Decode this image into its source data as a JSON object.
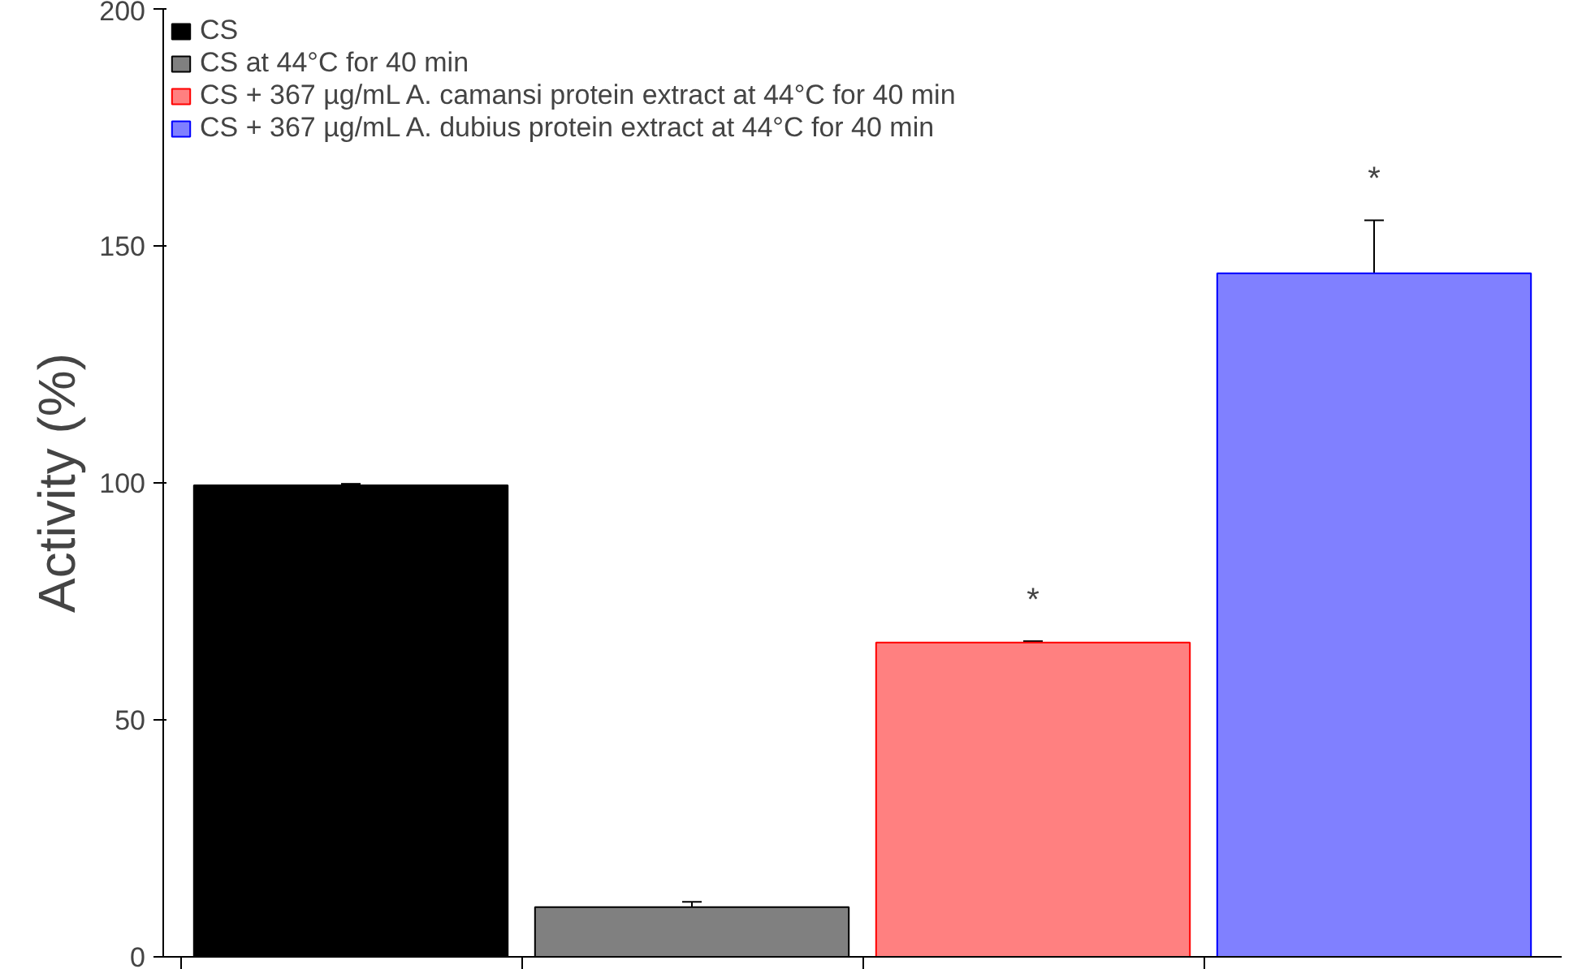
{
  "chart_data": {
    "type": "bar",
    "ylabel": "Activity (%)",
    "categories": [
      null,
      null,
      null,
      null
    ],
    "series": [
      {
        "name": "CS",
        "color": "#000000",
        "values": [
          99.5,
          null,
          null,
          null
        ],
        "errors": [
          0.3,
          null,
          null,
          null
        ]
      },
      {
        "name": "CS at 44°C for 40 min",
        "color": "#808080",
        "values": [
          null,
          10.5,
          null,
          null
        ],
        "errors": [
          null,
          1.1,
          null,
          null
        ]
      },
      {
        "name": "CS + 367 µg/mL A. camansi protein extract at 44°C for 40 min",
        "color": "#ff8080",
        "values": [
          null,
          null,
          66.3,
          null
        ],
        "errors": [
          null,
          null,
          0.3,
          null
        ]
      },
      {
        "name": "CS + 367 µg/mL A. dubius protein extract at 44°C for 40 min",
        "color": "#8080ff",
        "values": [
          null,
          null,
          null,
          144.2
        ],
        "errors": [
          null,
          null,
          null,
          11.2
        ]
      }
    ],
    "annotations": [
      "*",
      "*"
    ],
    "ylim": [
      0,
      200
    ],
    "yticks": [
      0,
      50,
      100,
      150,
      200
    ],
    "tick_labels": "y",
    "grid": false,
    "legend": "top left"
  }
}
